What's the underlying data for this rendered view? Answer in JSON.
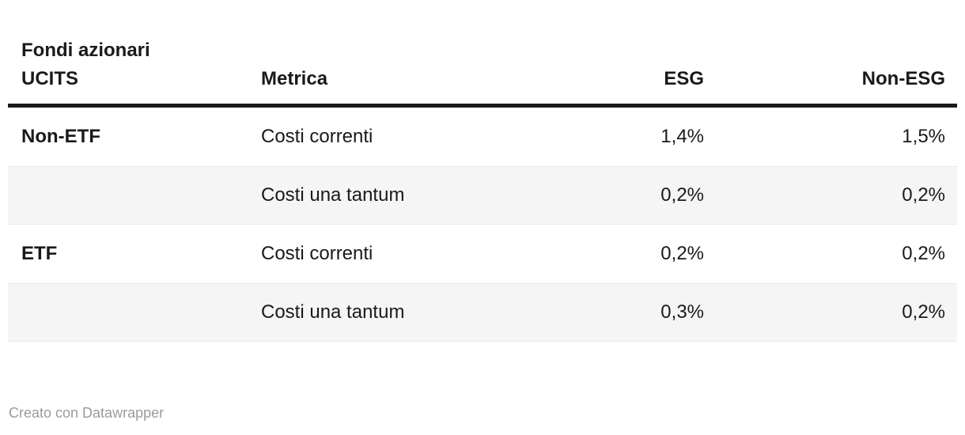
{
  "table": {
    "header": {
      "col1_line1": "Fondi azionari",
      "col1_line2": "UCITS",
      "col2": "Metrica",
      "col3": "ESG",
      "col4": "Non-ESG"
    },
    "rows": [
      {
        "group": "Non-ETF",
        "metric": "Costi correnti",
        "esg": "1,4%",
        "non_esg": "1,5%",
        "shaded": false
      },
      {
        "group": "",
        "metric": "Costi una tantum",
        "esg": "0,2%",
        "non_esg": "0,2%",
        "shaded": true
      },
      {
        "group": "ETF",
        "metric": "Costi correnti",
        "esg": "0,2%",
        "non_esg": "0,2%",
        "shaded": false
      },
      {
        "group": "",
        "metric": "Costi una tantum",
        "esg": "0,3%",
        "non_esg": "0,2%",
        "shaded": true
      }
    ]
  },
  "footer": {
    "attribution": "Creato con Datawrapper"
  },
  "colors": {
    "text": "#1a1a1a",
    "header_rule": "#1a1a1a",
    "row_shade": "#f5f5f5",
    "row_shade_border": "#e8e8e8",
    "footer_text": "#9b9b9b"
  },
  "chart_data": {
    "type": "table",
    "title": "Fondi azionari UCITS",
    "columns": [
      "Fondi azionari UCITS",
      "Metrica",
      "ESG",
      "Non-ESG"
    ],
    "rows": [
      [
        "Non-ETF",
        "Costi correnti",
        "1,4%",
        "1,5%"
      ],
      [
        "",
        "Costi una tantum",
        "0,2%",
        "0,2%"
      ],
      [
        "ETF",
        "Costi correnti",
        "0,2%",
        "0,2%"
      ],
      [
        "",
        "Costi una tantum",
        "0,3%",
        "0,2%"
      ]
    ],
    "notes": "values are percentages with comma decimal separator; alternating shaded rows",
    "attribution": "Creato con Datawrapper"
  }
}
